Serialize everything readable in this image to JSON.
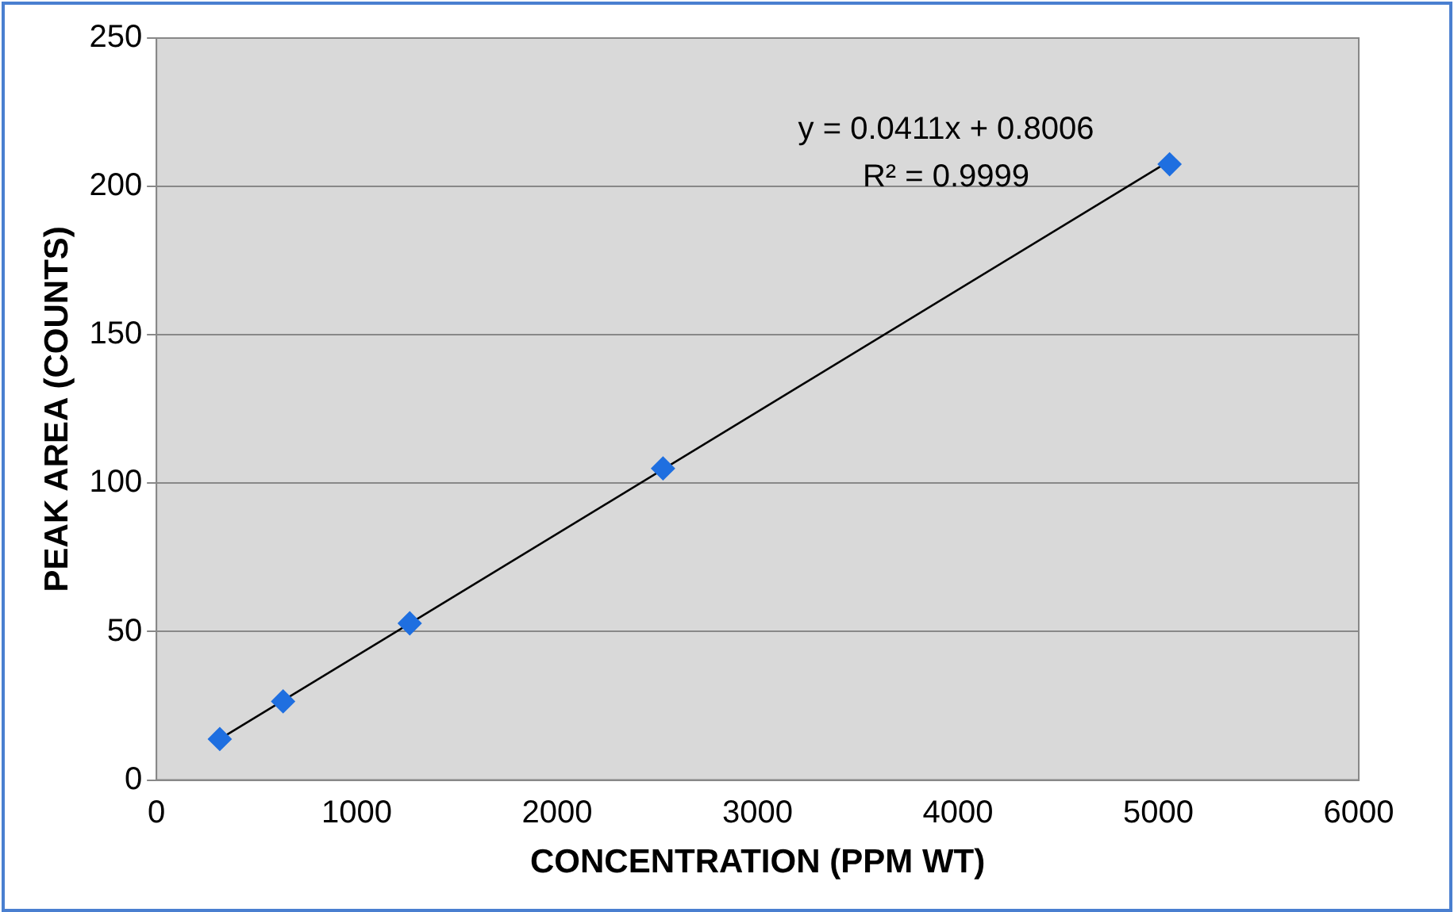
{
  "chart_data": {
    "type": "scatter",
    "xlabel": "CONCENTRATION (PPM WT)",
    "ylabel": "PEAK AREA (COUNTS)",
    "x": [
      316,
      632,
      1264,
      2528,
      5056
    ],
    "series": [
      {
        "color": "#1f6fe0",
        "marker": "diamond",
        "values": [
          13.8,
          26.5,
          52.8,
          105,
          207.5
        ]
      },
      {
        "type": "line",
        "color": "#000000",
        "marker": "none",
        "x": [
          316,
          5056
        ],
        "values": [
          13.8,
          208.6
        ]
      }
    ],
    "xlim": [
      0,
      6000
    ],
    "xticks": [
      0,
      1000,
      2000,
      3000,
      4000,
      5000,
      6000
    ],
    "ylim": [
      0,
      250
    ],
    "yticks": [
      0,
      50,
      100,
      150,
      200,
      250
    ],
    "grid": "y",
    "legend": false,
    "annotations": [
      "y = 0.0411x + 0.8006",
      "R² = 0.9999"
    ]
  }
}
